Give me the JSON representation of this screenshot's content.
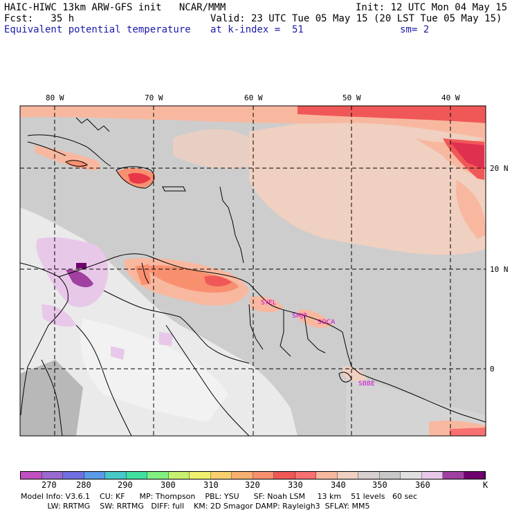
{
  "header": {
    "title": "HAIC-HIWC 13km ARW-GFS init   NCAR/MMM",
    "init": "Init: 12 UTC Mon 04 May 15",
    "fcst": "Fcst:   35 h",
    "valid": "Valid: 23 UTC Tue 05 May 15 (20 LST Tue 05 May 15)",
    "field": "Equivalent potential temperature",
    "level": "at k-index =  51",
    "smooth": "sm= 2"
  },
  "map": {
    "lon_labels": [
      "80 W",
      "70 W",
      "60 W",
      "50 W",
      "40 W"
    ],
    "lat_labels": [
      "20 N",
      "10 N",
      "0"
    ],
    "stations": [
      "SYEL",
      "SMJP",
      "SOCA",
      "SBBE"
    ]
  },
  "colorbar": {
    "unit": "K",
    "ticks": [
      "270",
      "280",
      "290",
      "300",
      "310",
      "320",
      "330",
      "340",
      "350",
      "360"
    ],
    "colors": [
      "#c050c0",
      "#9a6ad0",
      "#7070e0",
      "#5a9ae8",
      "#48c8c8",
      "#40e0a0",
      "#80f080",
      "#c8f070",
      "#f0f070",
      "#f8d070",
      "#f8b070",
      "#f89070",
      "#f05858",
      "#f87070",
      "#f8b8a0",
      "#f0d0c0",
      "#d8d0d0",
      "#c8c8c8",
      "#e0e0e0",
      "#e8c8e8",
      "#a040a0",
      "#700070"
    ]
  },
  "footer": {
    "line1": "Model Info: V3.6.1    CU: KF      MP: Thompson    PBL: YSU      SF: Noah LSM     13 km    51 levels   60 sec",
    "line2": "           LW: RRTMG    SW: RRTMG   DIFF: full    KM: 2D Smagor DAMP: Rayleigh3  SFLAY: MM5"
  }
}
